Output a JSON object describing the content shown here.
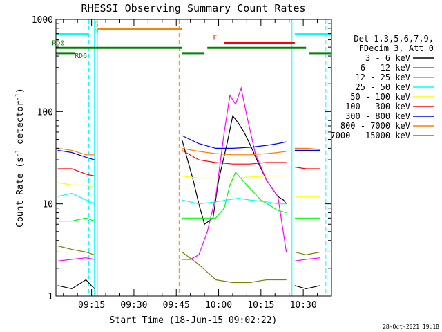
{
  "chart_data": {
    "type": "line",
    "title": "RHESSI Observing Summary Count Rates",
    "xlabel": "Start Time (18-Jun-15 09:02:22)",
    "ylabel_main": "Count Rate (s",
    "ylabel_sup": "-1",
    "ylabel_tail": " detector",
    "ylabel_end": ")",
    "yscale": "log",
    "xlim": [
      "09:02:22",
      "10:40:00"
    ],
    "ylim": [
      1,
      1000
    ],
    "y_ticks": [
      {
        "value": 1,
        "label": "1"
      },
      {
        "value": 10,
        "label": "10"
      },
      {
        "value": 100,
        "label": "100"
      },
      {
        "value": 1000,
        "label": "1000"
      }
    ],
    "x_ticks": [
      "09:15",
      "09:30",
      "09:45",
      "10:00",
      "10:15",
      "10:30"
    ],
    "legend_header": [
      "Det 1,3,5,6,7,9,",
      "FDecim 3, Att 0"
    ],
    "legend_placement": "right",
    "series": [
      {
        "name": "3 - 6 keV",
        "color": "#000000",
        "segments": [
          {
            "x": [
              "09:03",
              "09:08",
              "09:13",
              "09:16"
            ],
            "y": [
              1.3,
              1.2,
              1.5,
              1.2
            ]
          },
          {
            "x": [
              "09:47",
              "09:49",
              "09:51",
              "09:53",
              "09:55",
              "09:58",
              "10:00",
              "10:03",
              "10:05",
              "10:07",
              "10:09",
              "10:11",
              "10:14",
              "10:17",
              "10:21",
              "10:23",
              "10:24"
            ],
            "y": [
              50,
              30,
              18,
              10,
              6,
              7,
              18,
              45,
              90,
              75,
              60,
              45,
              28,
              18,
              12,
              11,
              10
            ]
          },
          {
            "x": [
              "10:27",
              "10:31",
              "10:36"
            ],
            "y": [
              1.3,
              1.2,
              1.3
            ]
          }
        ]
      },
      {
        "name": "6 - 12 keV",
        "color": "#ff00ff",
        "segments": [
          {
            "x": [
              "09:03",
              "09:08",
              "09:13",
              "09:16"
            ],
            "y": [
              2.4,
              2.5,
              2.6,
              2.5
            ]
          },
          {
            "x": [
              "09:47",
              "09:50",
              "09:53",
              "09:56",
              "09:59",
              "10:02",
              "10:04",
              "10:06",
              "10:08",
              "10:10",
              "10:13",
              "10:17",
              "10:21",
              "10:24"
            ],
            "y": [
              2.5,
              2.5,
              2.8,
              5,
              12,
              60,
              150,
              120,
              180,
              90,
              35,
              18,
              12,
              3
            ]
          },
          {
            "x": [
              "10:27",
              "10:31",
              "10:36"
            ],
            "y": [
              2.4,
              2.5,
              2.6
            ]
          }
        ]
      },
      {
        "name": "12 - 25 keV",
        "color": "#00ff00",
        "segments": [
          {
            "x": [
              "09:03",
              "09:08",
              "09:13",
              "09:16"
            ],
            "y": [
              6.5,
              6.5,
              7,
              6.5
            ]
          },
          {
            "x": [
              "09:47",
              "09:53",
              "09:59",
              "10:02",
              "10:04",
              "10:06",
              "10:10",
              "10:15",
              "10:21",
              "10:24"
            ],
            "y": [
              7,
              7,
              7,
              9,
              16,
              22,
              16,
              11,
              8.5,
              8
            ]
          },
          {
            "x": [
              "10:27",
              "10:31",
              "10:36"
            ],
            "y": [
              7,
              7,
              7
            ]
          }
        ]
      },
      {
        "name": "25 - 50 keV",
        "color": "#00ffff",
        "segments": [
          {
            "x": [
              "09:03",
              "09:08",
              "09:13",
              "09:16"
            ],
            "y": [
              12,
              13,
              11,
              10
            ]
          },
          {
            "x": [
              "09:47",
              "09:53",
              "09:59",
              "10:03",
              "10:07",
              "10:11",
              "10:17",
              "10:21",
              "10:24"
            ],
            "y": [
              11,
              10,
              10.5,
              11,
              11.5,
              11,
              10.5,
              10,
              10
            ]
          },
          {
            "x": [
              "10:27",
              "10:31",
              "10:36"
            ],
            "y": [
              6.5,
              6.5,
              6.5
            ]
          }
        ]
      },
      {
        "name": "50 - 100 keV",
        "color": "#ffff00",
        "segments": [
          {
            "x": [
              "09:03",
              "09:08",
              "09:13",
              "09:16"
            ],
            "y": [
              17,
              16,
              16,
              15
            ]
          },
          {
            "x": [
              "09:47",
              "09:53",
              "09:59",
              "10:05",
              "10:11",
              "10:17",
              "10:21",
              "10:24"
            ],
            "y": [
              20,
              19,
              19,
              19,
              19.5,
              20,
              20,
              20
            ]
          },
          {
            "x": [
              "10:27",
              "10:31",
              "10:36"
            ],
            "y": [
              12,
              12,
              12
            ]
          }
        ]
      },
      {
        "name": "100 - 300 keV",
        "color": "#ff0000",
        "segments": [
          {
            "x": [
              "09:03",
              "09:08",
              "09:13",
              "09:16"
            ],
            "y": [
              24,
              24,
              21,
              20
            ]
          },
          {
            "x": [
              "09:47",
              "09:53",
              "09:59",
              "10:05",
              "10:11",
              "10:17",
              "10:21",
              "10:24"
            ],
            "y": [
              38,
              30,
              28,
              27,
              27,
              28,
              28,
              28
            ]
          },
          {
            "x": [
              "10:27",
              "10:31",
              "10:36"
            ],
            "y": [
              25,
              24,
              24
            ]
          }
        ]
      },
      {
        "name": "300 - 800 keV",
        "color": "#0000ff",
        "segments": [
          {
            "x": [
              "09:03",
              "09:08",
              "09:13",
              "09:16"
            ],
            "y": [
              38,
              36,
              32,
              30
            ]
          },
          {
            "x": [
              "09:47",
              "09:53",
              "09:59",
              "10:05",
              "10:11",
              "10:17",
              "10:21",
              "10:24"
            ],
            "y": [
              55,
              45,
              40,
              40,
              41,
              43,
              45,
              47
            ]
          },
          {
            "x": [
              "10:27",
              "10:31",
              "10:36"
            ],
            "y": [
              38,
              38,
              38
            ]
          }
        ]
      },
      {
        "name": "800 - 7000 keV",
        "color": "#ff7f00",
        "segments": [
          {
            "x": [
              "09:03",
              "09:08",
              "09:13",
              "09:16"
            ],
            "y": [
              40,
              38,
              34,
              34
            ]
          },
          {
            "x": [
              "09:47",
              "09:53",
              "09:59",
              "10:05",
              "10:11",
              "10:17",
              "10:21",
              "10:24"
            ],
            "y": [
              40,
              37,
              35,
              34,
              34,
              35,
              36,
              37
            ]
          },
          {
            "x": [
              "10:27",
              "10:31",
              "10:36"
            ],
            "y": [
              40,
              40,
              39
            ]
          }
        ]
      },
      {
        "name": "7000 - 15000 keV",
        "color": "#7f7f00",
        "segments": [
          {
            "x": [
              "09:03",
              "09:08",
              "09:13",
              "09:16"
            ],
            "y": [
              3.5,
              3.2,
              3,
              2.8
            ]
          },
          {
            "x": [
              "09:47",
              "09:53",
              "09:59",
              "10:05",
              "10:11",
              "10:17",
              "10:21",
              "10:24"
            ],
            "y": [
              3,
              2.2,
              1.5,
              1.4,
              1.4,
              1.5,
              1.5,
              1.5
            ]
          },
          {
            "x": [
              "10:27",
              "10:31",
              "10:36"
            ],
            "y": [
              3,
              2.8,
              3
            ]
          }
        ]
      }
    ],
    "state_bars": [
      {
        "kind": "saa",
        "color": "#ff7f00",
        "y_level": 780,
        "x_start": "09:17",
        "x_end": "09:47",
        "label": "S",
        "label_x": "09:16"
      },
      {
        "kind": "night",
        "color": "#00ffff",
        "y_level": 690,
        "x_start": "09:02:22",
        "x_end": "09:14",
        "label": "N",
        "label_x": "09:16"
      },
      {
        "kind": "night",
        "color": "#00ffff",
        "y_level": 690,
        "x_start": "10:27",
        "x_end": "10:40"
      },
      {
        "kind": "flare",
        "color": "#ff0000",
        "y_level": 560,
        "x_start": "10:02",
        "x_end": "10:27",
        "label": "F",
        "label_x": "09:58"
      },
      {
        "kind": "decimation",
        "color": "#008000",
        "y_level": 490,
        "x_start": "09:02:22",
        "x_end": "09:47",
        "label": "RD0",
        "label_x": "09:01"
      },
      {
        "kind": "decimation",
        "color": "#008000",
        "y_level": 430,
        "x_start": "09:47",
        "x_end": "09:55"
      },
      {
        "kind": "decimation",
        "color": "#008000",
        "y_level": 490,
        "x_start": "09:56",
        "x_end": "10:31"
      },
      {
        "kind": "decimation",
        "color": "#008000",
        "y_level": 430,
        "x_start": "09:02:22",
        "x_end": "09:09",
        "label": "RD6",
        "label_x": "09:09"
      },
      {
        "kind": "decimation",
        "color": "#008000",
        "y_level": 430,
        "x_start": "10:32",
        "x_end": "10:40"
      }
    ],
    "vertical_markers": [
      {
        "x": "09:14",
        "color": "#00ffff",
        "style": "dashed"
      },
      {
        "x": "09:16",
        "color": "#00ffff",
        "style": "solid"
      },
      {
        "x": "09:17",
        "color": "#ff7f00",
        "style": "solid"
      },
      {
        "x": "09:46",
        "color": "#ff7f00",
        "style": "dashed"
      },
      {
        "x": "10:26",
        "color": "#00ffff",
        "style": "solid"
      },
      {
        "x": "10:38",
        "color": "#00ffff",
        "style": "dashed"
      }
    ]
  },
  "footer_timestamp": "28-Oct-2021 19:18"
}
